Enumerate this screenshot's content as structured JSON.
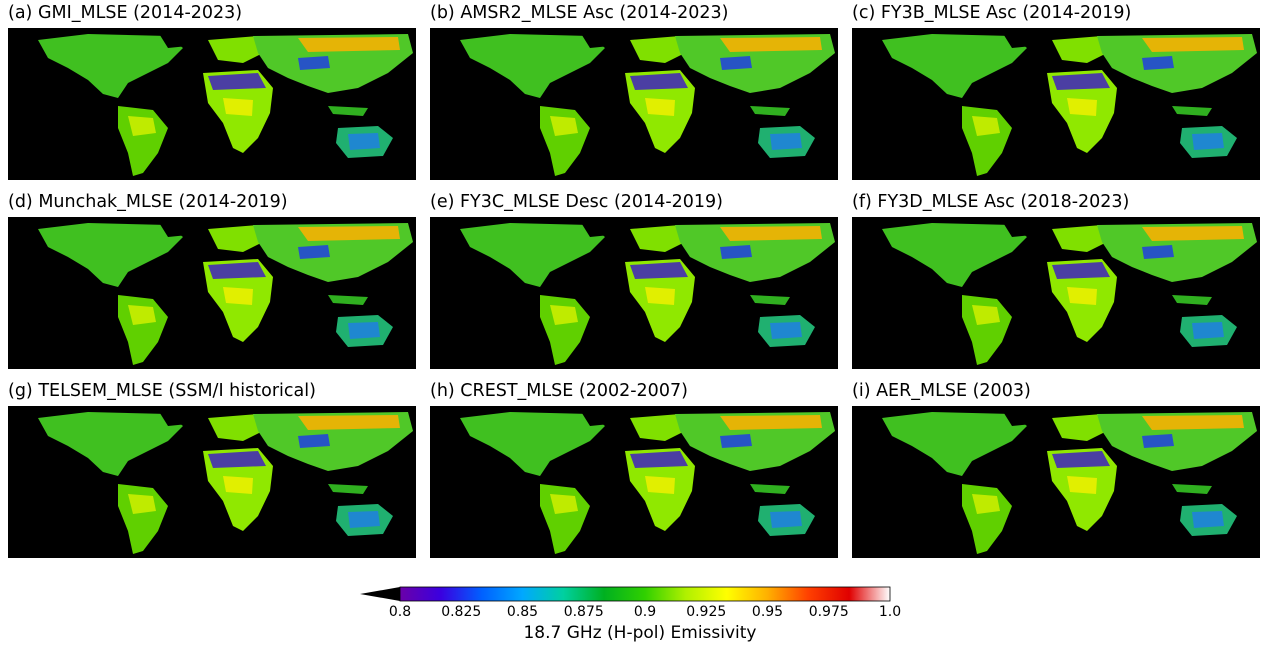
{
  "panels": [
    {
      "title": "(a) GMI_MLSE  (2014-2023)"
    },
    {
      "title": "(b) AMSR2_MLSE Asc  (2014-2023)"
    },
    {
      "title": "(c) FY3B_MLSE Asc  (2014-2019)"
    },
    {
      "title": "(d) Munchak_MLSE  (2014-2019)"
    },
    {
      "title": "(e) FY3C_MLSE Desc  (2014-2019)"
    },
    {
      "title": "(f) FY3D_MLSE Asc  (2018-2023)"
    },
    {
      "title": "(g) TELSEM_MLSE (SSM/I historical)"
    },
    {
      "title": "(h) CREST_MLSE  (2002-2007)"
    },
    {
      "title": "(i) AER_MLSE  (2003)"
    }
  ],
  "colorbar": {
    "label": "18.7 GHz (H-pol) Emissivity",
    "ticks": [
      "0.8",
      "0.825",
      "0.85",
      "0.875",
      "0.9",
      "0.925",
      "0.95",
      "0.975",
      "1.0"
    ],
    "range": [
      0.8,
      1.0
    ],
    "extend": "min",
    "colors": [
      "#000000",
      "#6a00a8",
      "#3a00e0",
      "#0060ff",
      "#00a8ff",
      "#00d0a0",
      "#00b020",
      "#30d000",
      "#b0f000",
      "#ffff00",
      "#ffb000",
      "#ff4000",
      "#e00000",
      "#ffffff"
    ]
  }
}
